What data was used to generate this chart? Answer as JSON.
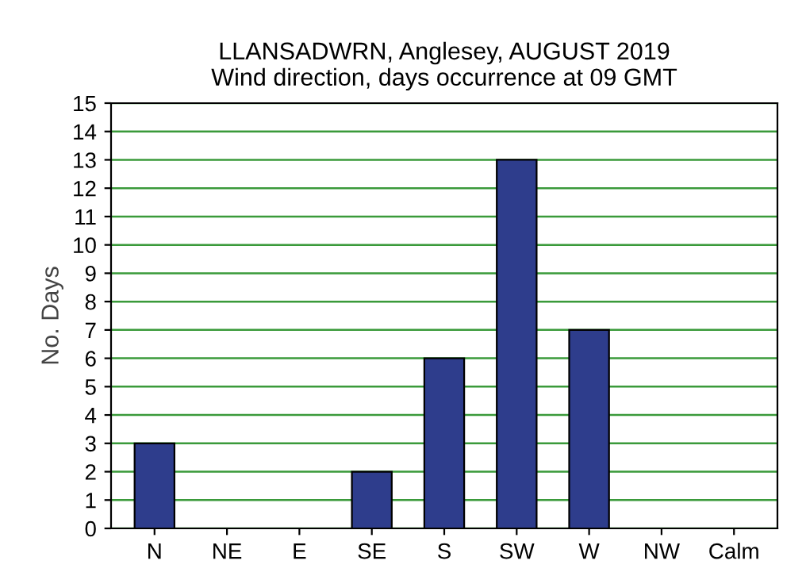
{
  "chart_data": {
    "type": "bar",
    "title": "LLANSADWRN, Anglesey, AUGUST 2019\nWind direction, days occurrence at 09 GMT",
    "ylabel": "No. Days",
    "categories": [
      "N",
      "NE",
      "E",
      "SE",
      "S",
      "SW",
      "W",
      "NW",
      "Calm"
    ],
    "values": [
      3,
      0,
      0,
      2,
      6,
      13,
      7,
      0,
      0
    ],
    "color": "#2e3d8c",
    "ylim": [
      0,
      15
    ],
    "yticks": [
      0,
      1,
      2,
      3,
      4,
      5,
      6,
      7,
      8,
      9,
      10,
      11,
      12,
      13,
      14,
      15
    ],
    "grid": "y",
    "legend": false
  }
}
